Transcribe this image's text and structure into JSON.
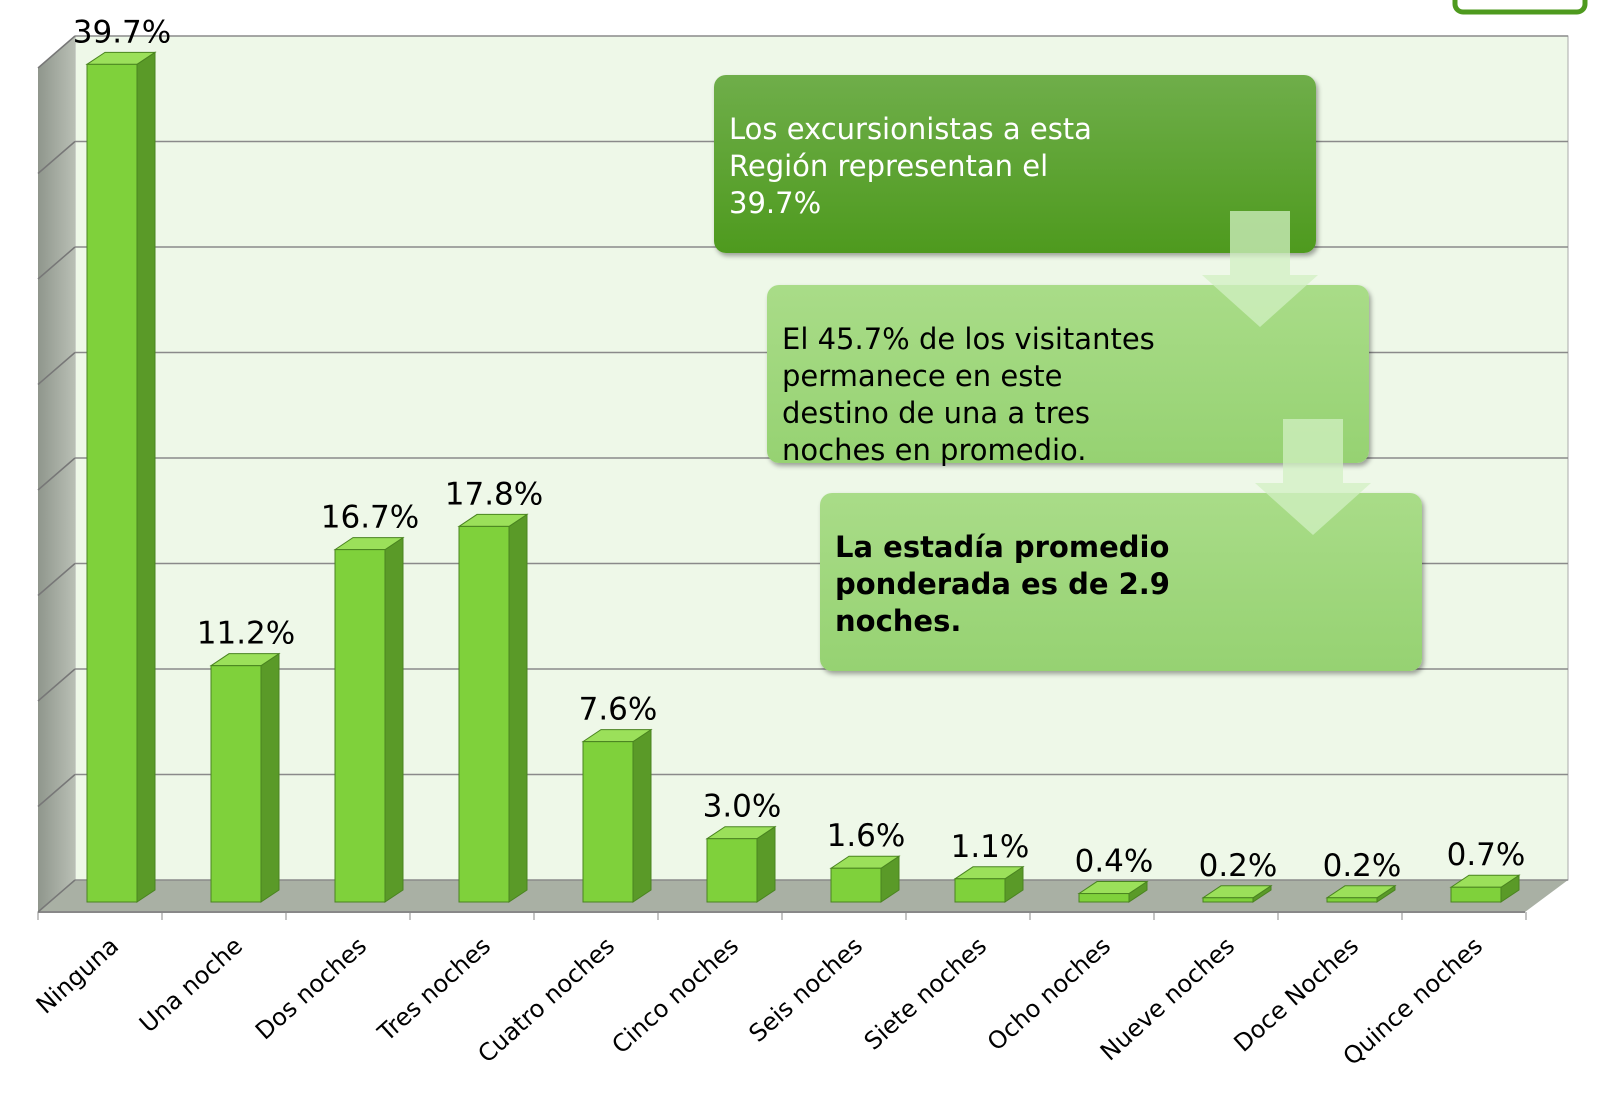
{
  "chart_data": {
    "type": "bar3d",
    "categories": [
      "Ninguna",
      "Una noche",
      "Dos noches",
      "Tres noches",
      "Cuatro noches",
      "Cinco noches",
      "Seis noches",
      "Siete noches",
      "Ocho noches",
      "Nueve noches",
      "Doce Noches",
      "Quince noches"
    ],
    "values": [
      39.7,
      11.2,
      16.7,
      17.8,
      7.6,
      3.0,
      1.6,
      1.1,
      0.4,
      0.2,
      0.2,
      0.7
    ],
    "value_labels": [
      "39.7%",
      "11.2%",
      "16.7%",
      "17.8%",
      "7.6%",
      "3.0%",
      "1.6%",
      "1.1%",
      "0.4%",
      "0.2%",
      "0.2%",
      "0.7%"
    ],
    "color": "#7fd13b",
    "ylim": [
      0,
      40
    ],
    "yticks": [
      0,
      5,
      10,
      15,
      20,
      25,
      30,
      35,
      40
    ],
    "grid": true,
    "annotations": [
      {
        "lines": [
          "Los excursionistas a esta",
          "Región representan el",
          "39.7%"
        ]
      },
      {
        "lines": [
          "El 45.7% de los visitantes",
          "permanece en este",
          "destino de una a tres",
          "noches en promedio."
        ]
      },
      {
        "lines": [
          "La estadía promedio",
          "ponderada es de 2.9",
          "noches."
        ]
      }
    ]
  }
}
